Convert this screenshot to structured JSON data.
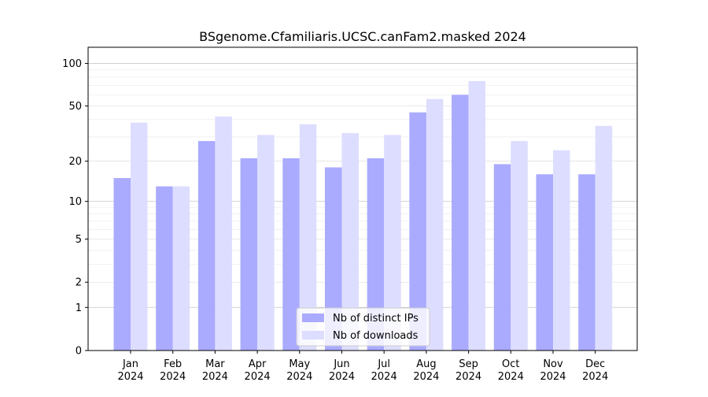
{
  "chart_data": {
    "type": "bar",
    "title": "BSgenome.Cfamiliaris.UCSC.canFam2.masked 2024",
    "xlabel": "",
    "ylabel": "",
    "y_scale": "log(1+y)",
    "ylim": [
      0,
      130
    ],
    "y_ticks": [
      "0",
      "1",
      "2",
      "5",
      "10",
      "20",
      "50",
      "100"
    ],
    "y_tick_values": [
      0,
      1,
      2,
      5,
      10,
      20,
      50,
      100
    ],
    "grid": "horizontal",
    "legend_position": "bottom-center",
    "categories": [
      [
        "Jan",
        "2024"
      ],
      [
        "Feb",
        "2024"
      ],
      [
        "Mar",
        "2024"
      ],
      [
        "Apr",
        "2024"
      ],
      [
        "May",
        "2024"
      ],
      [
        "Jun",
        "2024"
      ],
      [
        "Jul",
        "2024"
      ],
      [
        "Aug",
        "2024"
      ],
      [
        "Sep",
        "2024"
      ],
      [
        "Oct",
        "2024"
      ],
      [
        "Nov",
        "2024"
      ],
      [
        "Dec",
        "2024"
      ]
    ],
    "series": [
      {
        "name": "Nb of distinct IPs",
        "color": "#aaaaff",
        "values": [
          15,
          13,
          28,
          21,
          21,
          18,
          21,
          45,
          60,
          19,
          16,
          16
        ]
      },
      {
        "name": "Nb of downloads",
        "color": "#ddddff",
        "values": [
          38,
          13,
          42,
          31,
          37,
          32,
          31,
          56,
          75,
          28,
          24,
          36
        ]
      }
    ]
  }
}
